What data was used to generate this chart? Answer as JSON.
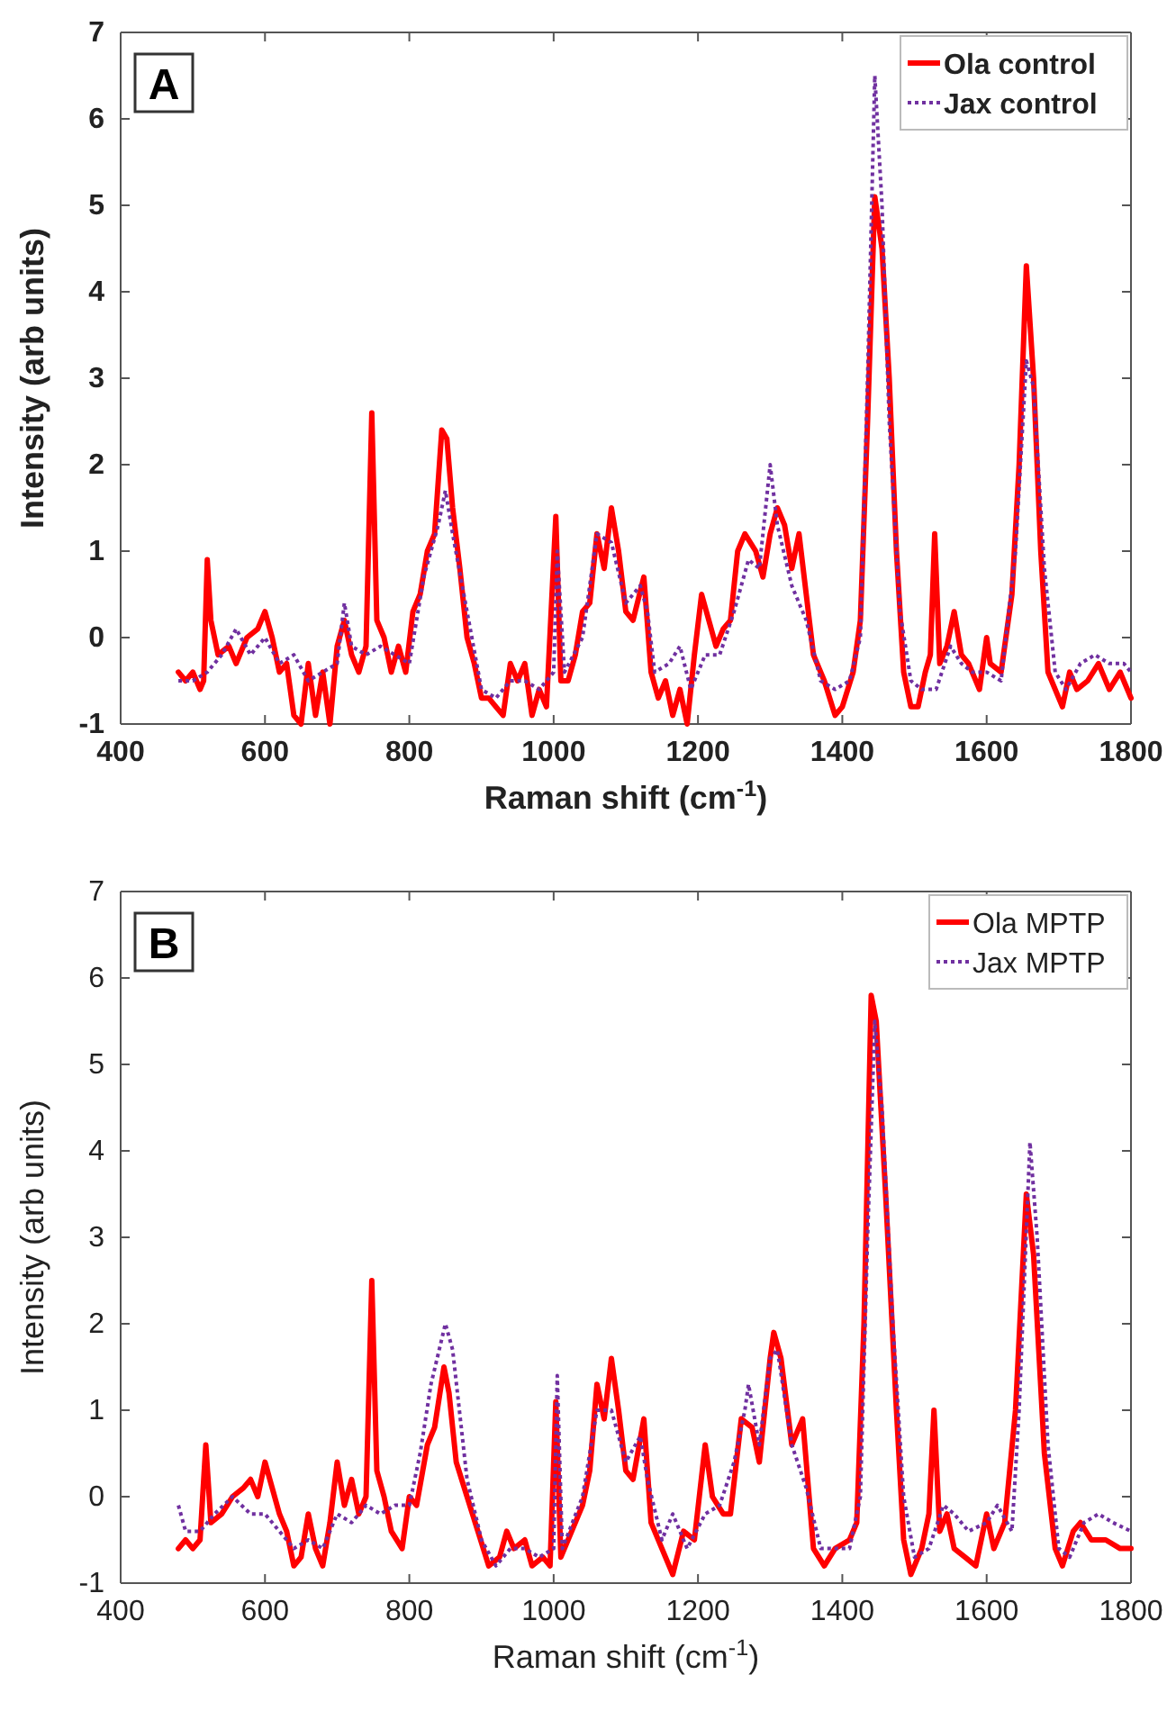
{
  "chart_data": [
    {
      "type": "line",
      "xlabel": "Raman shift (cm$^{-1}$)",
      "ylabel": "Intensity (arb units)",
      "annotations": [
        "A"
      ],
      "xlim": [
        400,
        1800
      ],
      "xticks": [
        400,
        600,
        800,
        1000,
        1200,
        1400,
        1600,
        1800
      ],
      "ylim": [
        -1,
        7
      ],
      "yticks": [
        -1,
        0,
        1,
        2,
        3,
        4,
        5,
        6,
        7
      ],
      "grid": false,
      "legend": "top right",
      "series": [
        {
          "name": "Ola control",
          "color": "#ff0000",
          "line_style": "solid",
          "x": [
            480,
            490,
            500,
            510,
            515,
            520,
            525,
            535,
            550,
            560,
            575,
            590,
            600,
            610,
            620,
            630,
            640,
            650,
            660,
            670,
            680,
            690,
            700,
            710,
            720,
            730,
            740,
            748,
            755,
            765,
            775,
            785,
            795,
            805,
            815,
            825,
            835,
            845,
            852,
            860,
            870,
            880,
            890,
            900,
            910,
            920,
            930,
            940,
            950,
            960,
            970,
            980,
            990,
            1003,
            1010,
            1020,
            1030,
            1040,
            1050,
            1060,
            1070,
            1080,
            1090,
            1100,
            1110,
            1125,
            1135,
            1145,
            1155,
            1165,
            1175,
            1185,
            1195,
            1205,
            1215,
            1225,
            1235,
            1245,
            1255,
            1265,
            1280,
            1290,
            1300,
            1310,
            1320,
            1330,
            1340,
            1350,
            1360,
            1375,
            1390,
            1400,
            1415,
            1425,
            1435,
            1445,
            1455,
            1465,
            1475,
            1485,
            1495,
            1505,
            1515,
            1522,
            1528,
            1535,
            1545,
            1555,
            1565,
            1575,
            1590,
            1600,
            1605,
            1620,
            1635,
            1645,
            1655,
            1665,
            1675,
            1685,
            1695,
            1705,
            1715,
            1725,
            1740,
            1755,
            1770,
            1785,
            1800
          ],
          "values": [
            -0.4,
            -0.5,
            -0.4,
            -0.6,
            -0.5,
            0.9,
            0.2,
            -0.2,
            -0.1,
            -0.3,
            0.0,
            0.1,
            0.3,
            0.0,
            -0.4,
            -0.3,
            -0.9,
            -1.0,
            -0.3,
            -0.9,
            -0.4,
            -1.0,
            -0.1,
            0.2,
            -0.2,
            -0.4,
            -0.1,
            2.6,
            0.2,
            0.0,
            -0.4,
            -0.1,
            -0.4,
            0.3,
            0.5,
            1.0,
            1.2,
            2.4,
            2.3,
            1.5,
            0.8,
            0.0,
            -0.3,
            -0.7,
            -0.7,
            -0.8,
            -0.9,
            -0.3,
            -0.5,
            -0.3,
            -0.9,
            -0.6,
            -0.8,
            1.4,
            -0.5,
            -0.5,
            -0.2,
            0.3,
            0.4,
            1.2,
            0.8,
            1.5,
            1.0,
            0.3,
            0.2,
            0.7,
            -0.4,
            -0.7,
            -0.5,
            -0.9,
            -0.6,
            -1.0,
            -0.2,
            0.5,
            0.2,
            -0.1,
            0.1,
            0.2,
            1.0,
            1.2,
            1.0,
            0.7,
            1.2,
            1.5,
            1.3,
            0.8,
            1.2,
            0.5,
            -0.2,
            -0.5,
            -0.9,
            -0.8,
            -0.4,
            0.2,
            2.5,
            5.1,
            4.5,
            3.0,
            1.0,
            -0.4,
            -0.8,
            -0.8,
            -0.4,
            -0.2,
            1.2,
            -0.3,
            -0.1,
            0.3,
            -0.2,
            -0.3,
            -0.6,
            0.0,
            -0.3,
            -0.4,
            0.5,
            2.0,
            4.3,
            3.0,
            1.0,
            -0.4,
            -0.6,
            -0.8,
            -0.4,
            -0.6,
            -0.5,
            -0.3,
            -0.6,
            -0.4,
            -0.7
          ]
        },
        {
          "name": "Jax control",
          "color": "#7030a0",
          "line_style": "dotted",
          "x": [
            480,
            500,
            520,
            540,
            560,
            580,
            600,
            620,
            640,
            660,
            680,
            700,
            710,
            720,
            740,
            760,
            780,
            800,
            820,
            840,
            850,
            860,
            880,
            900,
            920,
            940,
            960,
            980,
            1000,
            1005,
            1015,
            1040,
            1060,
            1080,
            1100,
            1120,
            1130,
            1140,
            1160,
            1175,
            1190,
            1210,
            1230,
            1250,
            1270,
            1285,
            1300,
            1310,
            1330,
            1350,
            1370,
            1390,
            1410,
            1425,
            1435,
            1445,
            1455,
            1465,
            1480,
            1495,
            1510,
            1530,
            1550,
            1565,
            1580,
            1600,
            1620,
            1640,
            1655,
            1665,
            1680,
            1695,
            1710,
            1730,
            1750,
            1770,
            1790,
            1800
          ],
          "values": [
            -0.5,
            -0.5,
            -0.4,
            -0.2,
            0.1,
            -0.2,
            0.0,
            -0.3,
            -0.2,
            -0.5,
            -0.4,
            -0.3,
            0.4,
            -0.1,
            -0.2,
            -0.1,
            -0.2,
            -0.3,
            0.7,
            1.3,
            1.7,
            1.2,
            0.3,
            -0.6,
            -0.7,
            -0.5,
            -0.5,
            -0.6,
            -0.4,
            1.0,
            -0.4,
            0.0,
            1.2,
            1.1,
            0.4,
            0.6,
            0.3,
            -0.4,
            -0.3,
            -0.1,
            -0.6,
            -0.2,
            -0.2,
            0.3,
            0.9,
            0.8,
            2.0,
            1.3,
            0.6,
            0.2,
            -0.5,
            -0.6,
            -0.5,
            0.0,
            3.0,
            6.5,
            5.0,
            2.5,
            0.3,
            -0.5,
            -0.6,
            -0.6,
            -0.1,
            -0.3,
            -0.4,
            -0.4,
            -0.5,
            1.0,
            3.2,
            2.9,
            0.8,
            -0.4,
            -0.6,
            -0.3,
            -0.2,
            -0.3,
            -0.3,
            -0.4
          ]
        }
      ]
    },
    {
      "type": "line",
      "xlabel": "Raman shift (cm$^{-1}$)",
      "ylabel": "Intensity (arb units)",
      "annotations": [
        "B"
      ],
      "xlim": [
        400,
        1800
      ],
      "xticks": [
        400,
        600,
        800,
        1000,
        1200,
        1400,
        1600,
        1800
      ],
      "ylim": [
        -1,
        7
      ],
      "yticks": [
        -1,
        0,
        1,
        2,
        3,
        4,
        5,
        6,
        7
      ],
      "grid": false,
      "legend": "top right",
      "series": [
        {
          "name": "Ola MPTP",
          "color": "#ff0000",
          "line_style": "solid",
          "x": [
            480,
            490,
            500,
            510,
            518,
            525,
            540,
            555,
            570,
            580,
            590,
            600,
            610,
            620,
            630,
            640,
            650,
            660,
            670,
            680,
            690,
            700,
            710,
            720,
            730,
            740,
            748,
            755,
            765,
            775,
            790,
            800,
            810,
            825,
            835,
            848,
            855,
            865,
            880,
            895,
            910,
            925,
            935,
            945,
            960,
            970,
            985,
            995,
            1003,
            1010,
            1025,
            1040,
            1050,
            1060,
            1070,
            1080,
            1090,
            1100,
            1110,
            1125,
            1135,
            1150,
            1165,
            1180,
            1195,
            1210,
            1220,
            1235,
            1245,
            1260,
            1275,
            1285,
            1300,
            1305,
            1315,
            1330,
            1345,
            1360,
            1375,
            1390,
            1410,
            1420,
            1430,
            1440,
            1447,
            1460,
            1475,
            1485,
            1495,
            1510,
            1520,
            1527,
            1535,
            1545,
            1555,
            1570,
            1585,
            1600,
            1610,
            1625,
            1640,
            1655,
            1665,
            1680,
            1695,
            1705,
            1720,
            1730,
            1745,
            1765,
            1785,
            1800
          ],
          "values": [
            -0.6,
            -0.5,
            -0.6,
            -0.5,
            0.6,
            -0.3,
            -0.2,
            0.0,
            0.1,
            0.2,
            0.0,
            0.4,
            0.1,
            -0.2,
            -0.4,
            -0.8,
            -0.7,
            -0.2,
            -0.6,
            -0.8,
            -0.3,
            0.4,
            -0.1,
            0.2,
            -0.2,
            0.0,
            2.5,
            0.3,
            0.0,
            -0.4,
            -0.6,
            0.0,
            -0.1,
            0.6,
            0.8,
            1.5,
            1.2,
            0.4,
            0.0,
            -0.4,
            -0.8,
            -0.7,
            -0.4,
            -0.6,
            -0.5,
            -0.8,
            -0.7,
            -0.8,
            1.1,
            -0.7,
            -0.4,
            -0.1,
            0.3,
            1.3,
            0.9,
            1.6,
            1.0,
            0.3,
            0.2,
            0.9,
            -0.3,
            -0.6,
            -0.9,
            -0.4,
            -0.5,
            0.6,
            0.0,
            -0.2,
            -0.2,
            0.9,
            0.8,
            0.4,
            1.6,
            1.9,
            1.6,
            0.6,
            0.9,
            -0.6,
            -0.8,
            -0.6,
            -0.5,
            -0.3,
            2.0,
            5.8,
            5.5,
            3.5,
            1.0,
            -0.5,
            -0.9,
            -0.6,
            -0.2,
            1.0,
            -0.4,
            -0.2,
            -0.6,
            -0.7,
            -0.8,
            -0.2,
            -0.6,
            -0.3,
            1.0,
            3.5,
            2.8,
            0.5,
            -0.6,
            -0.8,
            -0.4,
            -0.3,
            -0.5,
            -0.5,
            -0.6,
            -0.6
          ]
        },
        {
          "name": "Jax MPTP",
          "color": "#7030a0",
          "line_style": "dotted",
          "x": [
            480,
            490,
            510,
            530,
            555,
            580,
            600,
            620,
            640,
            660,
            680,
            700,
            720,
            740,
            760,
            780,
            800,
            815,
            830,
            850,
            860,
            880,
            900,
            920,
            940,
            960,
            980,
            1000,
            1005,
            1012,
            1040,
            1060,
            1080,
            1100,
            1120,
            1130,
            1150,
            1165,
            1185,
            1210,
            1230,
            1250,
            1265,
            1270,
            1285,
            1300,
            1310,
            1330,
            1350,
            1370,
            1390,
            1410,
            1425,
            1435,
            1445,
            1455,
            1470,
            1485,
            1500,
            1520,
            1540,
            1555,
            1575,
            1600,
            1615,
            1635,
            1645,
            1660,
            1670,
            1685,
            1700,
            1715,
            1735,
            1755,
            1775,
            1800
          ],
          "values": [
            -0.1,
            -0.4,
            -0.4,
            -0.2,
            0.0,
            -0.2,
            -0.2,
            -0.4,
            -0.6,
            -0.5,
            -0.6,
            -0.2,
            -0.3,
            -0.1,
            -0.2,
            -0.1,
            -0.1,
            0.5,
            1.3,
            2.0,
            1.7,
            0.2,
            -0.5,
            -0.8,
            -0.6,
            -0.6,
            -0.7,
            -0.6,
            1.4,
            -0.6,
            0.0,
            1.0,
            1.0,
            0.4,
            0.7,
            0.2,
            -0.5,
            -0.2,
            -0.6,
            -0.2,
            -0.1,
            0.4,
            1.0,
            1.3,
            0.6,
            1.6,
            1.7,
            0.6,
            0.1,
            -0.6,
            -0.6,
            -0.6,
            0.0,
            3.0,
            5.5,
            4.5,
            2.0,
            0.0,
            -0.7,
            -0.6,
            -0.1,
            -0.2,
            -0.4,
            -0.3,
            -0.1,
            -0.4,
            1.0,
            4.1,
            3.0,
            0.6,
            -0.6,
            -0.7,
            -0.3,
            -0.2,
            -0.3,
            -0.4
          ]
        }
      ]
    }
  ]
}
